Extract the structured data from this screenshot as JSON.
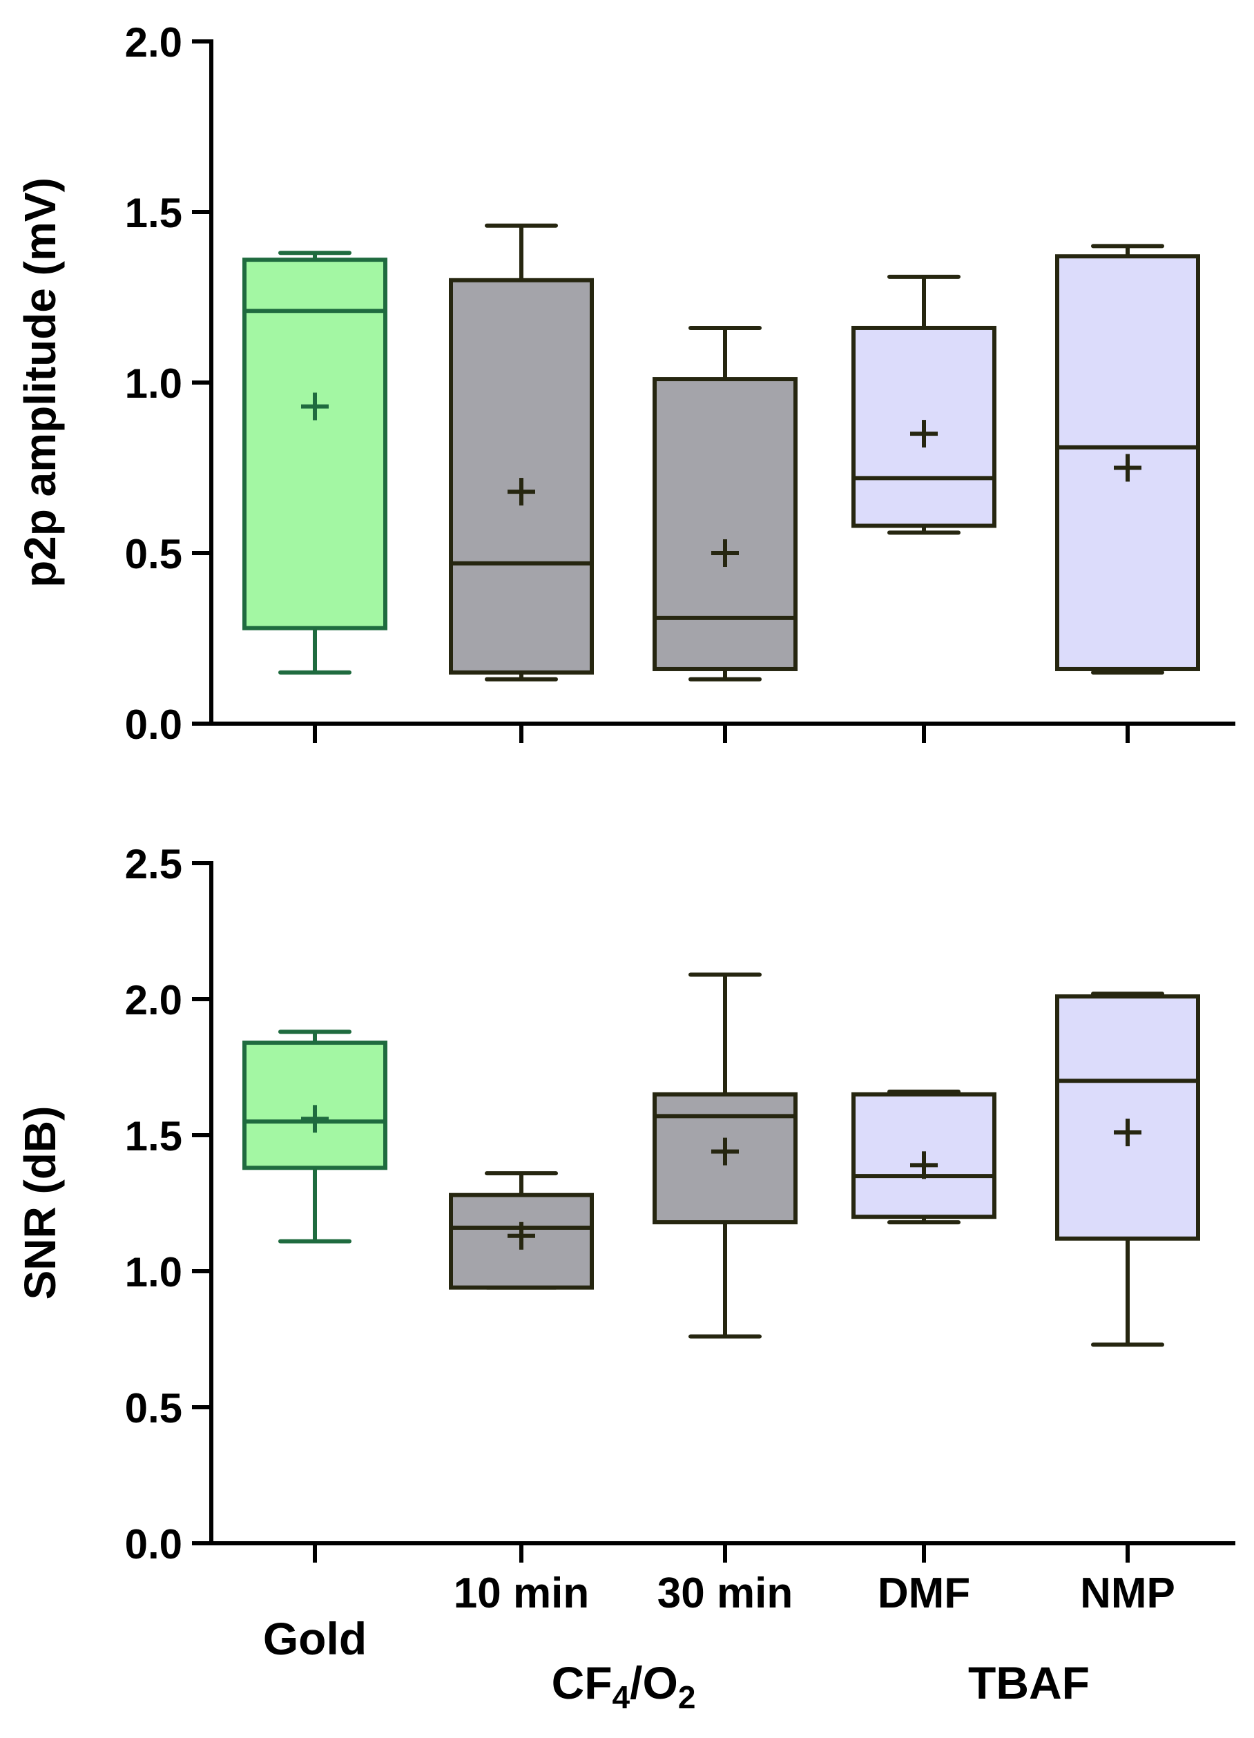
{
  "colors": {
    "gold_stroke": "#1f6b3f",
    "gold_fill": "#a3f7a3",
    "cf4_stroke": "#262610",
    "cf4_fill": "#a4a4aa",
    "tbaf_stroke": "#262610",
    "tbaf_fill": "#dcdcfb",
    "axis": "#000000"
  },
  "x_labels": {
    "gold": "Gold",
    "cf4_10": "10 min",
    "cf4_30": "30 min",
    "dmf": "DMF",
    "nmp": "NMP",
    "cf4_group": {
      "cf": "CF",
      "sub4": "4",
      "slash_o": "/O",
      "sub2": "2"
    },
    "tbaf_group": "TBAF"
  },
  "chart_data": [
    {
      "type": "box",
      "title": "",
      "ylabel": "p2p amplitude (mV)",
      "ylim": [
        0,
        2.0
      ],
      "yticks": [
        "0.0",
        "0.5",
        "1.0",
        "1.5",
        "2.0"
      ],
      "categories": [
        "Gold",
        "10 min",
        "30 min",
        "DMF",
        "NMP"
      ],
      "boxes": [
        {
          "name": "Gold",
          "group": "gold",
          "min": 0.15,
          "q1": 0.28,
          "median": 1.21,
          "q3": 1.36,
          "max": 1.38,
          "mean": 0.93
        },
        {
          "name": "10 min",
          "group": "cf4",
          "min": 0.13,
          "q1": 0.15,
          "median": 0.47,
          "q3": 1.3,
          "max": 1.46,
          "mean": 0.68
        },
        {
          "name": "30 min",
          "group": "cf4",
          "min": 0.13,
          "q1": 0.16,
          "median": 0.31,
          "q3": 1.01,
          "max": 1.16,
          "mean": 0.5
        },
        {
          "name": "DMF",
          "group": "tbaf",
          "min": 0.56,
          "q1": 0.58,
          "median": 0.72,
          "q3": 1.16,
          "max": 1.31,
          "mean": 0.85
        },
        {
          "name": "NMP",
          "group": "tbaf",
          "min": 0.15,
          "q1": 0.16,
          "median": 0.81,
          "q3": 1.37,
          "max": 1.4,
          "mean": 0.75
        }
      ]
    },
    {
      "type": "box",
      "title": "",
      "ylabel": "SNR (dB)",
      "ylim": [
        0,
        2.5
      ],
      "yticks": [
        "0.0",
        "0.5",
        "1.0",
        "1.5",
        "2.0",
        "2.5"
      ],
      "categories": [
        "Gold",
        "10 min",
        "30 min",
        "DMF",
        "NMP"
      ],
      "boxes": [
        {
          "name": "Gold",
          "group": "gold",
          "min": 1.11,
          "q1": 1.38,
          "median": 1.55,
          "q3": 1.84,
          "max": 1.88,
          "mean": 1.56
        },
        {
          "name": "10 min",
          "group": "cf4",
          "min": 0.94,
          "q1": 0.94,
          "median": 1.16,
          "q3": 1.28,
          "max": 1.36,
          "mean": 1.13
        },
        {
          "name": "30 min",
          "group": "cf4",
          "min": 0.76,
          "q1": 1.18,
          "median": 1.57,
          "q3": 1.65,
          "max": 2.09,
          "mean": 1.44
        },
        {
          "name": "DMF",
          "group": "tbaf",
          "min": 1.18,
          "q1": 1.2,
          "median": 1.35,
          "q3": 1.65,
          "max": 1.66,
          "mean": 1.39
        },
        {
          "name": "NMP",
          "group": "tbaf",
          "min": 0.73,
          "q1": 1.12,
          "median": 1.7,
          "q3": 2.01,
          "max": 2.02,
          "mean": 1.51
        }
      ]
    }
  ]
}
